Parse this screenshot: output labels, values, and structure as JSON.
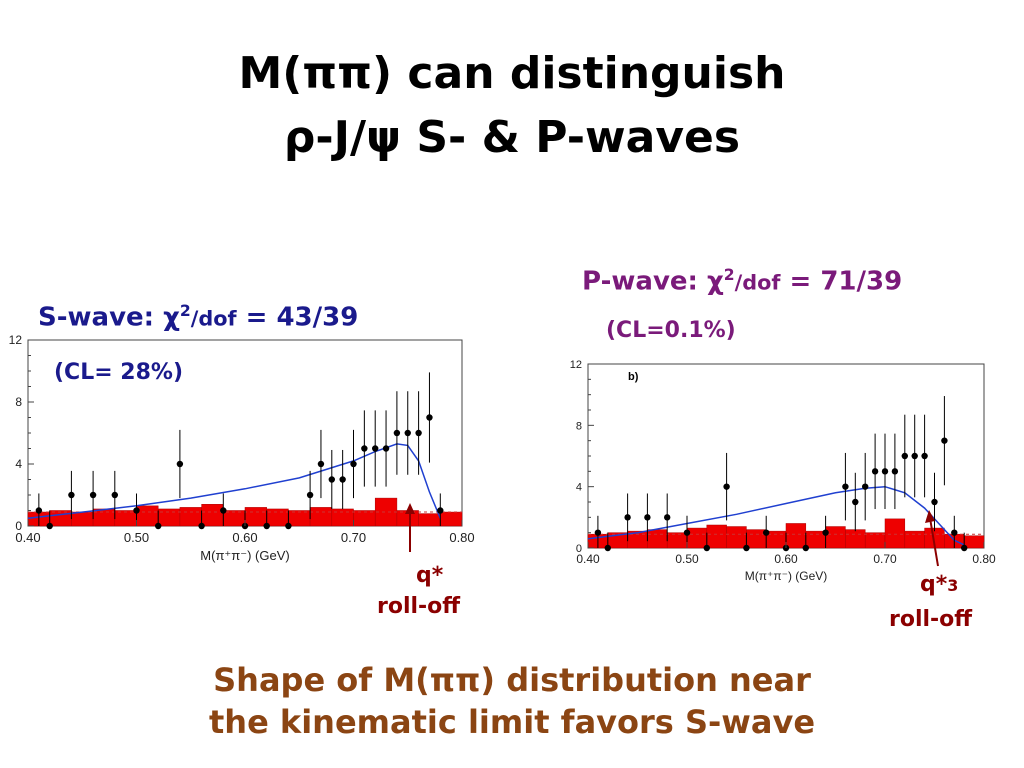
{
  "title": {
    "line1": "M(ππ) can distinguish",
    "line2": "ρ-J/ψ  S- & P-waves"
  },
  "swave": {
    "label_prefix": "S-wave: χ",
    "sup": "2",
    "label_dof": "/dof",
    "label_value": " = 43/39",
    "cl": "(CL= 28%)",
    "annotation_q": "q*",
    "annotation_roll": "roll-off"
  },
  "pwave": {
    "label_prefix": "P-wave: χ",
    "sup": "2",
    "label_dof": "/dof",
    "label_value": " = 71/39",
    "cl": "(CL=0.1%)",
    "annotation_q": "q*",
    "annotation_q_sup": "3",
    "annotation_roll": "roll-off",
    "panel_tag": "b)"
  },
  "bottom": {
    "line1": "Shape of M(ππ) distribution near",
    "line2": "the kinematic limit favors S-wave"
  },
  "colors": {
    "points": "#000000",
    "fit": "#2040d0",
    "hist": "#ee0000",
    "title": "#000000",
    "swave_label": "#1a1a8c",
    "pwave_label": "#7a1a7a",
    "rolloff": "#8b0000",
    "bottom": "#8b4513"
  },
  "chart_data": [
    {
      "type": "scatter",
      "name_hint": "S-wave fit",
      "xlabel": "M(π⁺π⁻) (GeV)",
      "xlim": [
        0.4,
        0.8
      ],
      "ylim": [
        0,
        12
      ],
      "xticks": [
        "0.40",
        "0.50",
        "0.60",
        "0.70",
        "0.80"
      ],
      "yticks": [
        "0",
        "4",
        "8",
        "12"
      ],
      "points": {
        "x": [
          0.41,
          0.42,
          0.44,
          0.46,
          0.48,
          0.5,
          0.52,
          0.54,
          0.56,
          0.58,
          0.6,
          0.62,
          0.64,
          0.66,
          0.67,
          0.68,
          0.69,
          0.7,
          0.71,
          0.72,
          0.73,
          0.74,
          0.75,
          0.76,
          0.77,
          0.78
        ],
        "y": [
          1,
          0,
          2,
          2,
          2,
          1,
          0,
          4,
          0,
          1,
          0,
          0,
          0,
          2,
          4,
          3,
          3,
          4,
          5,
          5,
          5,
          6,
          6,
          6,
          7,
          1
        ]
      },
      "fit": {
        "x": [
          0.4,
          0.45,
          0.5,
          0.55,
          0.6,
          0.65,
          0.7,
          0.72,
          0.74,
          0.75,
          0.76,
          0.77,
          0.78
        ],
        "y": [
          0.5,
          0.9,
          1.3,
          1.8,
          2.4,
          3.1,
          4.2,
          4.8,
          5.3,
          5.2,
          4.2,
          2.2,
          0.5
        ]
      },
      "histogram": {
        "x": [
          0.41,
          0.43,
          0.45,
          0.47,
          0.49,
          0.51,
          0.53,
          0.55,
          0.57,
          0.59,
          0.61,
          0.63,
          0.65,
          0.67,
          0.69,
          0.71,
          0.73,
          0.75,
          0.77,
          0.79
        ],
        "y": [
          0.9,
          1.0,
          0.9,
          1.1,
          1.0,
          1.3,
          1.1,
          1.2,
          1.4,
          1.0,
          1.2,
          1.1,
          1.0,
          1.2,
          1.1,
          1.0,
          1.8,
          1.0,
          0.8,
          0.9
        ]
      }
    },
    {
      "type": "scatter",
      "name_hint": "P-wave fit",
      "xlabel": "M(π⁺π⁻) (GeV)",
      "xlim": [
        0.4,
        0.8
      ],
      "ylim": [
        0,
        12
      ],
      "xticks": [
        "0.40",
        "0.50",
        "0.60",
        "0.70",
        "0.80"
      ],
      "yticks": [
        "0",
        "4",
        "8",
        "12"
      ],
      "points": {
        "x": [
          0.41,
          0.42,
          0.44,
          0.46,
          0.48,
          0.5,
          0.52,
          0.54,
          0.56,
          0.58,
          0.6,
          0.62,
          0.64,
          0.66,
          0.67,
          0.68,
          0.69,
          0.7,
          0.71,
          0.72,
          0.73,
          0.74,
          0.75,
          0.76,
          0.77,
          0.78
        ],
        "y": [
          1,
          0,
          2,
          2,
          2,
          1,
          0,
          4,
          0,
          1,
          0,
          0,
          1,
          4,
          3,
          4,
          5,
          5,
          5,
          6,
          6,
          6,
          3,
          7,
          1,
          0
        ]
      },
      "fit": {
        "x": [
          0.4,
          0.45,
          0.5,
          0.55,
          0.6,
          0.65,
          0.68,
          0.7,
          0.72,
          0.74,
          0.76,
          0.77,
          0.78
        ],
        "y": [
          0.6,
          1.0,
          1.6,
          2.2,
          2.9,
          3.6,
          3.9,
          4.0,
          3.6,
          2.6,
          1.2,
          0.5,
          0.2
        ]
      },
      "histogram": {
        "x": [
          0.41,
          0.43,
          0.45,
          0.47,
          0.49,
          0.51,
          0.53,
          0.55,
          0.57,
          0.59,
          0.61,
          0.63,
          0.65,
          0.67,
          0.69,
          0.71,
          0.73,
          0.75,
          0.77,
          0.79
        ],
        "y": [
          0.9,
          1.0,
          1.1,
          1.2,
          1.0,
          1.3,
          1.5,
          1.4,
          1.2,
          1.1,
          1.6,
          1.1,
          1.4,
          1.2,
          1.0,
          1.9,
          1.1,
          1.3,
          0.9,
          0.8
        ]
      }
    }
  ]
}
